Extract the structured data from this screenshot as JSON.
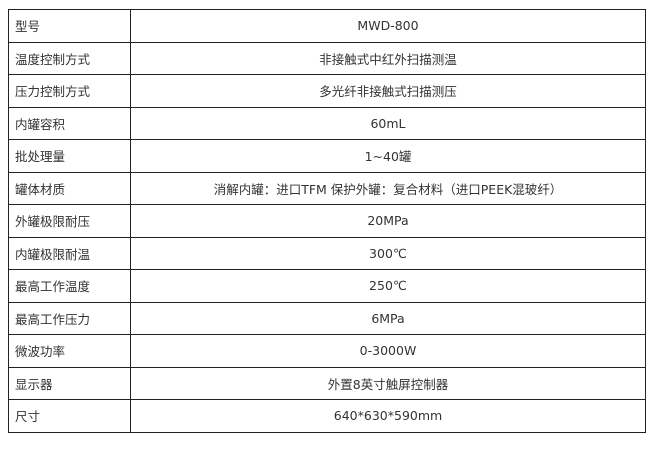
{
  "rows": [
    {
      "label": "型号",
      "value": "MWD-800"
    },
    {
      "label": "温度控制方式",
      "value": "非接触式中红外扫描测温"
    },
    {
      "label": "压力控制方式",
      "value": "多光纤非接触式扫描测压"
    },
    {
      "label": "内罐容积",
      "value": "60mL"
    },
    {
      "label": "批处理量",
      "value": "1~40罐"
    },
    {
      "label": "罐体材质",
      "value": "消解内罐：进口TFM  保护外罐：复合材料（进口PEEK混玻纤）"
    },
    {
      "label": "外罐极限耐压",
      "value": "20MPa"
    },
    {
      "label": "内罐极限耐温",
      "value": "300℃"
    },
    {
      "label": "最高工作温度",
      "value": "250℃"
    },
    {
      "label": "最高工作压力",
      "value": "6MPa"
    },
    {
      "label": "微波功率",
      "value": "0-3000W"
    },
    {
      "label": "显示器",
      "value": "外置8英寸触屏控制器"
    },
    {
      "label": "尺寸",
      "value": "640*630*590mm"
    }
  ]
}
